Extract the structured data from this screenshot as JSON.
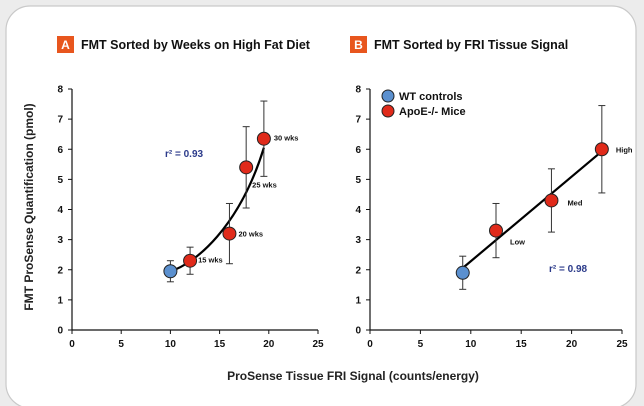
{
  "colors": {
    "panel_badge": "#e8561e",
    "apoe_point": "#e02a1a",
    "wt_point": "#5b90cf",
    "fit_line": "#000000",
    "r2_text": "#2b3a8a"
  },
  "shared": {
    "ylabel": "FMT ProSense Quantification (pmol)",
    "xlabel": "ProSense Tissue FRI Signal (counts/energy)"
  },
  "chart_data": [
    {
      "type": "scatter",
      "panel_letter": "A",
      "title": "FMT Sorted by Weeks on High Fat Diet",
      "xlim": [
        0,
        25
      ],
      "ylim": [
        0,
        8
      ],
      "xticks": [
        "0",
        "5",
        "10",
        "15",
        "20",
        "25"
      ],
      "yticks": [
        "0",
        "1",
        "2",
        "3",
        "4",
        "5",
        "6",
        "7",
        "8"
      ],
      "r2_label": "r² = 0.93",
      "fit": "curve",
      "points": [
        {
          "x": 10,
          "y": 1.95,
          "err": 0.35,
          "group": "wt",
          "label": ""
        },
        {
          "x": 12,
          "y": 2.3,
          "err": 0.45,
          "group": "apoe",
          "label": "15 wks"
        },
        {
          "x": 16,
          "y": 3.2,
          "err": 1.0,
          "group": "apoe",
          "label": "20 wks"
        },
        {
          "x": 17.7,
          "y": 5.4,
          "err": 1.35,
          "group": "apoe",
          "label": "25 wks"
        },
        {
          "x": 19.5,
          "y": 6.35,
          "err": 1.25,
          "group": "apoe",
          "label": "30 wks"
        }
      ]
    },
    {
      "type": "scatter",
      "panel_letter": "B",
      "title": "FMT Sorted by FRI Tissue Signal",
      "xlim": [
        0,
        25
      ],
      "ylim": [
        0,
        8
      ],
      "xticks": [
        "0",
        "5",
        "10",
        "15",
        "20",
        "25"
      ],
      "yticks": [
        "0",
        "1",
        "2",
        "3",
        "4",
        "5",
        "6",
        "7",
        "8"
      ],
      "r2_label": "r² = 0.98",
      "fit": "line",
      "legend": [
        {
          "label": "WT controls",
          "group": "wt"
        },
        {
          "label": "ApoE-/- Mice",
          "group": "apoe"
        }
      ],
      "points": [
        {
          "x": 9.2,
          "y": 1.9,
          "err": 0.55,
          "group": "wt",
          "label": ""
        },
        {
          "x": 12.5,
          "y": 3.3,
          "err": 0.9,
          "group": "apoe",
          "label": "Low"
        },
        {
          "x": 18,
          "y": 4.3,
          "err": 1.05,
          "group": "apoe",
          "label": "Med"
        },
        {
          "x": 23,
          "y": 6.0,
          "err": 1.45,
          "group": "apoe",
          "label": "High"
        }
      ]
    }
  ]
}
